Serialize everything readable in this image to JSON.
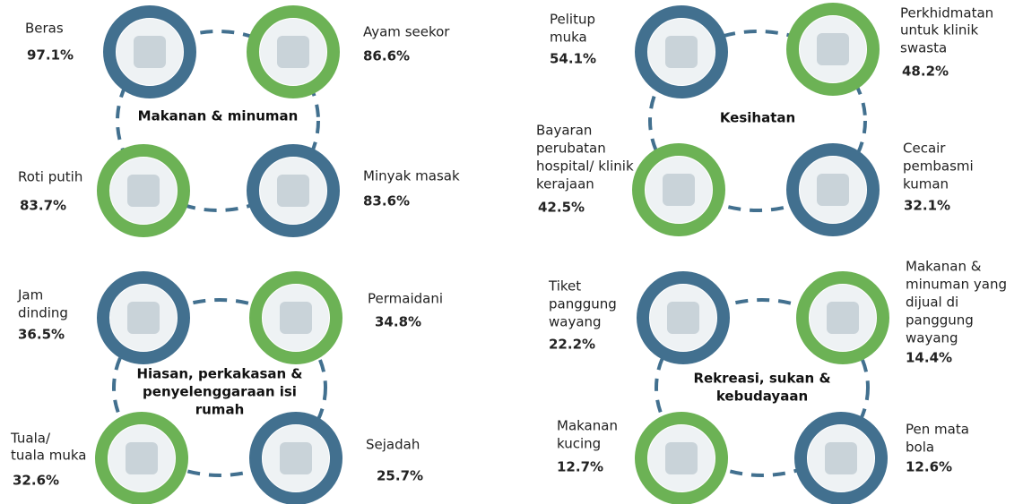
{
  "groups": [
    {
      "title": [
        "Makanan & minuman"
      ],
      "items": [
        {
          "label": [
            "Beras"
          ],
          "value": "97.1%"
        },
        {
          "label": [
            "Ayam seekor"
          ],
          "value": "86.6%"
        },
        {
          "label": [
            "Roti putih"
          ],
          "value": "83.7%"
        },
        {
          "label": [
            "Minyak masak"
          ],
          "value": "83.6%"
        }
      ]
    },
    {
      "title": [
        "Kesihatan"
      ],
      "items": [
        {
          "label": [
            "Pelitup",
            "muka"
          ],
          "value": "54.1%"
        },
        {
          "label": [
            "Perkhidmatan",
            "untuk klinik",
            "swasta"
          ],
          "value": "48.2%"
        },
        {
          "label": [
            "Bayaran",
            "perubatan",
            "hospital/ klinik",
            "kerajaan"
          ],
          "value": "42.5%"
        },
        {
          "label": [
            "Cecair",
            "pembasmi",
            "kuman"
          ],
          "value": "32.1%"
        }
      ]
    },
    {
      "title": [
        "Hiasan, perkakasan &",
        "penyelenggaraan isi",
        "rumah"
      ],
      "items": [
        {
          "label": [
            "Jam",
            "dinding"
          ],
          "value": "36.5%"
        },
        {
          "label": [
            "Permaidani"
          ],
          "value": "34.8%"
        },
        {
          "label": [
            "Tuala/",
            "tuala muka"
          ],
          "value": "32.6%"
        },
        {
          "label": [
            "Sejadah"
          ],
          "value": "25.7%"
        }
      ]
    },
    {
      "title": [
        "Rekreasi, sukan &",
        "kebudayaan"
      ],
      "items": [
        {
          "label": [
            "Tiket",
            "panggung",
            "wayang"
          ],
          "value": "22.2%"
        },
        {
          "label": [
            "Makanan &",
            "minuman yang",
            "dijual di",
            "panggung",
            "wayang"
          ],
          "value": "14.4%"
        },
        {
          "label": [
            "Makanan",
            "kucing"
          ],
          "value": "12.7%"
        },
        {
          "label": [
            "Pen mata",
            "bola"
          ],
          "value": "12.6%"
        }
      ]
    }
  ]
}
